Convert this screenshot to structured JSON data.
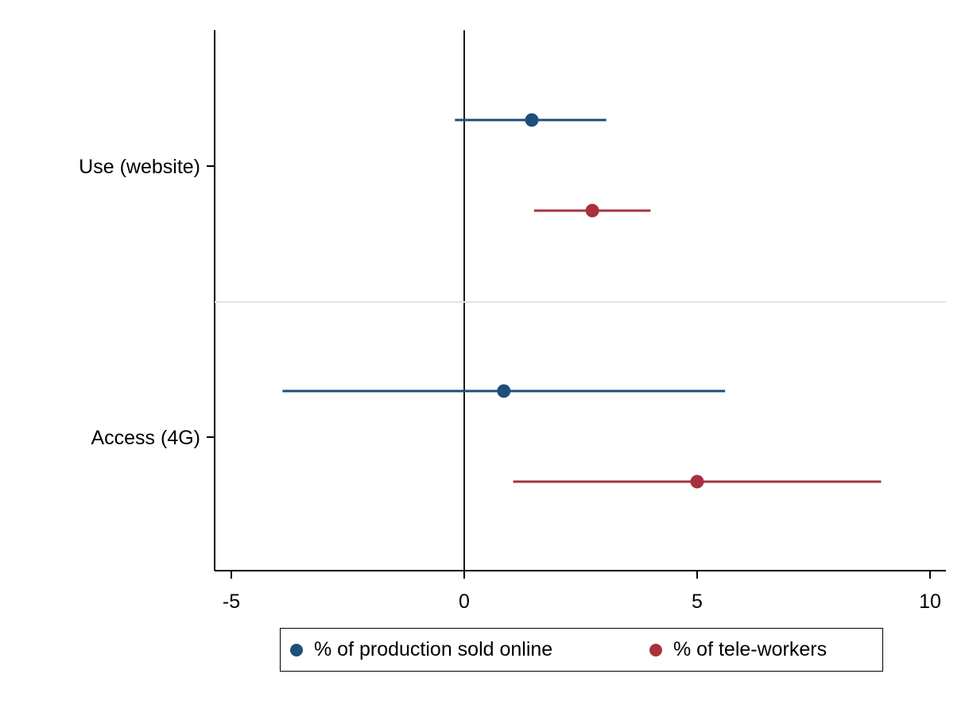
{
  "chart_data": {
    "type": "scatter",
    "subtype": "coefficient-plot-with-confidence-intervals",
    "title": "",
    "xlabel": "",
    "ylabel": "",
    "xlim": [
      -5.3,
      10.3
    ],
    "xticks": [
      -5,
      0,
      5,
      10
    ],
    "xtick_labels": [
      "-5",
      "0",
      "5",
      "10"
    ],
    "reference_line_x": 0,
    "grid": false,
    "categories": [
      "Use (website)",
      "Access (4G)"
    ],
    "series": [
      {
        "name": "% of production sold online",
        "color": "#1f4e79",
        "points": [
          {
            "category": "Use (website)",
            "estimate": 1.45,
            "ci_low": -0.2,
            "ci_high": 3.05
          },
          {
            "category": "Access (4G)",
            "estimate": 0.85,
            "ci_low": -3.9,
            "ci_high": 5.6
          }
        ]
      },
      {
        "name": "% of tele-workers",
        "color": "#a8313f",
        "points": [
          {
            "category": "Use (website)",
            "estimate": 2.75,
            "ci_low": 1.5,
            "ci_high": 4.0
          },
          {
            "category": "Access (4G)",
            "estimate": 5.0,
            "ci_low": 1.05,
            "ci_high": 8.95
          }
        ]
      }
    ],
    "legend": {
      "position": "bottom"
    }
  }
}
